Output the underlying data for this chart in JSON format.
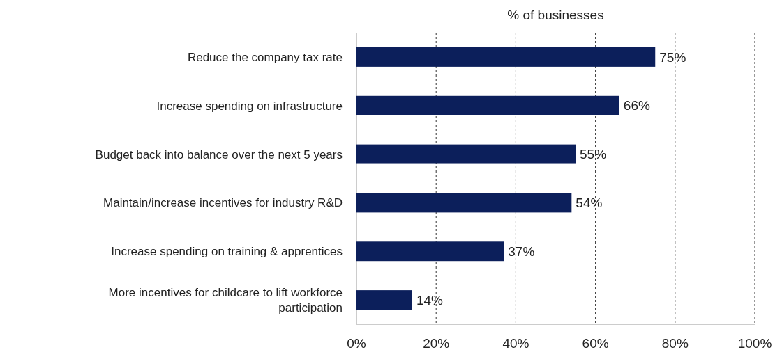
{
  "chart_data": {
    "type": "bar",
    "orientation": "horizontal",
    "xlabel": "% of businesses",
    "categories": [
      "Reduce the company tax rate",
      "Increase spending on infrastructure",
      "Budget back into balance over the next 5 years",
      "Maintain/increase incentives for industry R&D",
      "Increase spending on training & apprentices",
      "More incentives for childcare to lift workforce participation"
    ],
    "values": [
      75,
      66,
      55,
      54,
      37,
      14
    ],
    "value_labels": [
      "75%",
      "66%",
      "55%",
      "54%",
      "37%",
      "14%"
    ],
    "color": "#0c1f5b",
    "xlim": [
      0,
      100
    ],
    "xticks": [
      {
        "value": 0,
        "label": "0%"
      },
      {
        "value": 20,
        "label": "20%"
      },
      {
        "value": 40,
        "label": "40%"
      },
      {
        "value": 60,
        "label": "60%"
      },
      {
        "value": 80,
        "label": "80%"
      },
      {
        "value": 100,
        "label": "100%"
      }
    ],
    "grid": "x"
  }
}
